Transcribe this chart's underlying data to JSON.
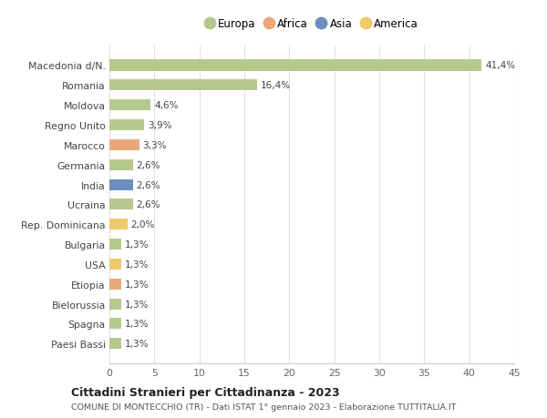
{
  "categories": [
    "Paesi Bassi",
    "Spagna",
    "Bielorussia",
    "Etiopia",
    "USA",
    "Bulgaria",
    "Rep. Dominicana",
    "Ucraina",
    "India",
    "Germania",
    "Marocco",
    "Regno Unito",
    "Moldova",
    "Romania",
    "Macedonia d/N."
  ],
  "values": [
    1.3,
    1.3,
    1.3,
    1.3,
    1.3,
    1.3,
    2.0,
    2.6,
    2.6,
    2.6,
    3.3,
    3.9,
    4.6,
    16.4,
    41.4
  ],
  "colors": [
    "#b5c98e",
    "#b5c98e",
    "#b5c98e",
    "#e8a87c",
    "#f0c96a",
    "#b5c98e",
    "#f0c96a",
    "#b5c98e",
    "#6b8fbe",
    "#b5c98e",
    "#e8a87c",
    "#b5c98e",
    "#b5c98e",
    "#b5c98e",
    "#b5c98e"
  ],
  "labels": [
    "1,3%",
    "1,3%",
    "1,3%",
    "1,3%",
    "1,3%",
    "1,3%",
    "2,0%",
    "2,6%",
    "2,6%",
    "2,6%",
    "3,3%",
    "3,9%",
    "4,6%",
    "16,4%",
    "41,4%"
  ],
  "legend_labels": [
    "Europa",
    "Africa",
    "Asia",
    "America"
  ],
  "legend_colors": [
    "#b5c98e",
    "#e8a87c",
    "#6b8fbe",
    "#f0c96a"
  ],
  "title": "Cittadini Stranieri per Cittadinanza - 2023",
  "subtitle": "COMUNE DI MONTECCHIO (TR) - Dati ISTAT 1° gennaio 2023 - Elaborazione TUTTITALIA.IT",
  "xlim": [
    0,
    45
  ],
  "xticks": [
    0,
    5,
    10,
    15,
    20,
    25,
    30,
    35,
    40,
    45
  ],
  "background_color": "#ffffff",
  "grid_color": "#e0e0e0",
  "bar_height": 0.55
}
